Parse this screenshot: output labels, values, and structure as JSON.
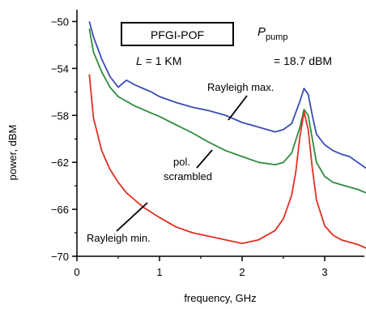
{
  "chart_data": {
    "type": "line",
    "xlabel": "frequency, GHz",
    "ylabel": "power, dBM",
    "xlim": [
      0,
      3.5
    ],
    "ylim": [
      -70,
      -49
    ],
    "xticks": [
      0,
      1,
      2,
      3
    ],
    "xtick_labels": [
      "0",
      "1",
      "2",
      "3"
    ],
    "yticks": [
      -50,
      -54,
      -58,
      -62,
      -66,
      -70
    ],
    "ytick_labels": [
      "−50",
      "−54",
      "−58",
      "−62",
      "−66",
      "−70"
    ],
    "grid": false,
    "annotations": {
      "box_label": "PFGI-POF",
      "length_prefix": "L",
      "length_text": " = 1 KM",
      "pump_symbol": "P",
      "pump_subscript": "pump",
      "pump_value": "= 18.7 dBM",
      "label_max": "Rayleigh max.",
      "label_pol_line1": "pol.",
      "label_pol_line2": "scrambled",
      "label_min": "Rayleigh min."
    },
    "series": [
      {
        "color": "#3a4bb5",
        "x": [
          0.15,
          0.2,
          0.3,
          0.4,
          0.5,
          0.6,
          0.7,
          0.8,
          0.9,
          1.0,
          1.2,
          1.4,
          1.6,
          1.8,
          2.0,
          2.2,
          2.4,
          2.5,
          2.6,
          2.7,
          2.75,
          2.8,
          2.85,
          2.9,
          3.0,
          3.1,
          3.2,
          3.3,
          3.4,
          3.5
        ],
        "y": [
          -50.0,
          -51.3,
          -53.2,
          -54.7,
          -55.6,
          -55.0,
          -55.4,
          -55.7,
          -56.0,
          -56.4,
          -56.9,
          -57.3,
          -57.6,
          -58.0,
          -58.6,
          -59.0,
          -59.4,
          -59.2,
          -58.7,
          -56.8,
          -55.7,
          -56.2,
          -58.0,
          -59.6,
          -60.5,
          -61.0,
          -61.3,
          -61.5,
          -62.0,
          -62.5
        ]
      },
      {
        "color": "#2e8c3e",
        "x": [
          0.15,
          0.2,
          0.3,
          0.4,
          0.5,
          0.6,
          0.7,
          0.8,
          0.9,
          1.0,
          1.2,
          1.4,
          1.6,
          1.8,
          2.0,
          2.2,
          2.4,
          2.5,
          2.6,
          2.7,
          2.75,
          2.8,
          2.85,
          2.9,
          3.0,
          3.1,
          3.2,
          3.3,
          3.4,
          3.5
        ],
        "y": [
          -50.6,
          -52.6,
          -54.3,
          -55.6,
          -56.4,
          -56.8,
          -57.2,
          -57.5,
          -57.8,
          -58.1,
          -58.8,
          -59.5,
          -60.3,
          -61.0,
          -61.5,
          -62.0,
          -62.2,
          -62.0,
          -61.2,
          -59.0,
          -57.5,
          -58.0,
          -60.0,
          -62.0,
          -63.2,
          -63.7,
          -63.9,
          -64.1,
          -64.3,
          -64.6
        ]
      },
      {
        "color": "#e03020",
        "x": [
          0.15,
          0.2,
          0.3,
          0.4,
          0.5,
          0.6,
          0.7,
          0.8,
          1.0,
          1.2,
          1.4,
          1.6,
          1.8,
          2.0,
          2.2,
          2.4,
          2.5,
          2.6,
          2.65,
          2.7,
          2.75,
          2.8,
          2.85,
          2.9,
          3.0,
          3.1,
          3.2,
          3.3,
          3.4,
          3.5
        ],
        "y": [
          -54.5,
          -58.2,
          -61.0,
          -62.6,
          -63.7,
          -64.6,
          -65.2,
          -65.8,
          -66.7,
          -67.5,
          -68.0,
          -68.3,
          -68.6,
          -68.9,
          -68.6,
          -67.8,
          -66.8,
          -64.8,
          -62.8,
          -59.8,
          -57.7,
          -59.2,
          -62.5,
          -65.2,
          -67.4,
          -68.2,
          -68.6,
          -68.8,
          -69.0,
          -69.3
        ]
      }
    ]
  }
}
